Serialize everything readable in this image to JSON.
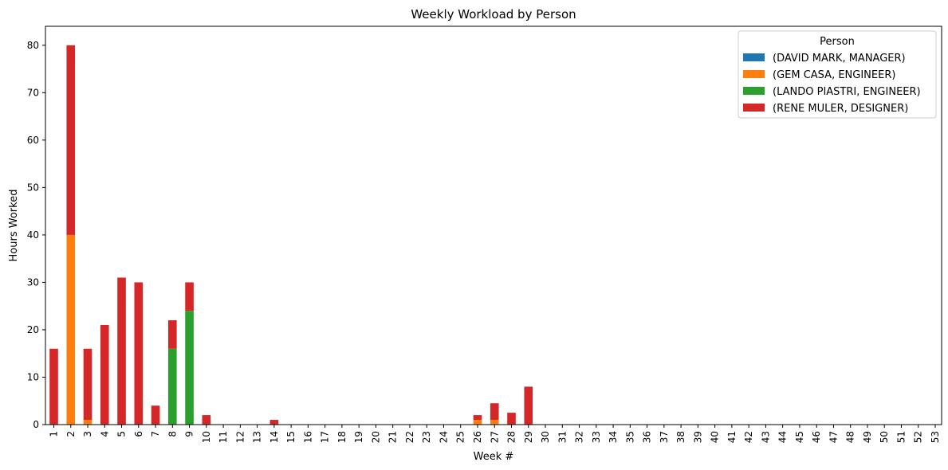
{
  "chart_data": {
    "type": "bar",
    "stacked": true,
    "title": "Weekly Workload by Person",
    "xlabel": "Week #",
    "ylabel": "Hours Worked",
    "ylim": [
      0,
      84
    ],
    "yticks": [
      0,
      10,
      20,
      30,
      40,
      50,
      60,
      70,
      80
    ],
    "legend_title": "Person",
    "legend_position": "top-right",
    "grid": false,
    "categories": [
      "1",
      "2",
      "3",
      "4",
      "5",
      "6",
      "7",
      "8",
      "9",
      "10",
      "11",
      "12",
      "13",
      "14",
      "15",
      "16",
      "17",
      "18",
      "19",
      "20",
      "21",
      "22",
      "23",
      "24",
      "25",
      "26",
      "27",
      "28",
      "29",
      "30",
      "31",
      "32",
      "33",
      "34",
      "35",
      "36",
      "37",
      "38",
      "39",
      "40",
      "41",
      "42",
      "43",
      "44",
      "45",
      "46",
      "47",
      "48",
      "49",
      "50",
      "51",
      "52",
      "53"
    ],
    "series": [
      {
        "name": "(DAVID MARK, MANAGER)",
        "color": "#1f77b4",
        "values": [
          0,
          0,
          0,
          0,
          0,
          0,
          0,
          0,
          0,
          0,
          0,
          0,
          0,
          0,
          0,
          0,
          0,
          0,
          0,
          0,
          0,
          0,
          0,
          0,
          0,
          0,
          0,
          0,
          0,
          0,
          0,
          0,
          0,
          0,
          0,
          0,
          0,
          0,
          0,
          0,
          0,
          0,
          0,
          0,
          0,
          0,
          0,
          0,
          0,
          0,
          0,
          0,
          0
        ]
      },
      {
        "name": "(GEM CASA, ENGINEER)",
        "color": "#ff7f0e",
        "values": [
          0,
          40,
          1,
          0,
          0,
          0,
          0,
          0,
          0,
          0,
          0,
          0,
          0,
          0,
          0,
          0,
          0,
          0,
          0,
          0,
          0,
          0,
          0,
          0,
          0,
          1,
          1,
          0,
          0,
          0,
          0,
          0,
          0,
          0,
          0,
          0,
          0,
          0,
          0,
          0,
          0,
          0,
          0,
          0,
          0,
          0,
          0,
          0,
          0,
          0,
          0,
          0,
          0
        ]
      },
      {
        "name": "(LANDO PIASTRI, ENGINEER)",
        "color": "#2ca02c",
        "values": [
          0,
          0,
          0,
          0,
          0,
          0,
          0,
          16,
          24,
          0,
          0,
          0,
          0,
          0,
          0,
          0,
          0,
          0,
          0,
          0,
          0,
          0,
          0,
          0,
          0,
          0,
          0,
          0,
          0,
          0,
          0,
          0,
          0,
          0,
          0,
          0,
          0,
          0,
          0,
          0,
          0,
          0,
          0,
          0,
          0,
          0,
          0,
          0,
          0,
          0,
          0,
          0,
          0
        ]
      },
      {
        "name": "(RENE MULER, DESIGNER)",
        "color": "#d62728",
        "values": [
          16,
          40,
          15,
          21,
          31,
          30,
          4,
          6,
          6,
          2,
          0,
          0,
          0,
          1,
          0,
          0,
          0,
          0,
          0,
          0,
          0,
          0,
          0,
          0,
          0,
          1,
          3.5,
          2.5,
          8,
          0,
          0,
          0,
          0,
          0,
          0,
          0,
          0,
          0,
          0,
          0,
          0,
          0,
          0,
          0,
          0,
          0,
          0,
          0,
          0,
          0,
          0,
          0,
          0
        ]
      }
    ]
  }
}
